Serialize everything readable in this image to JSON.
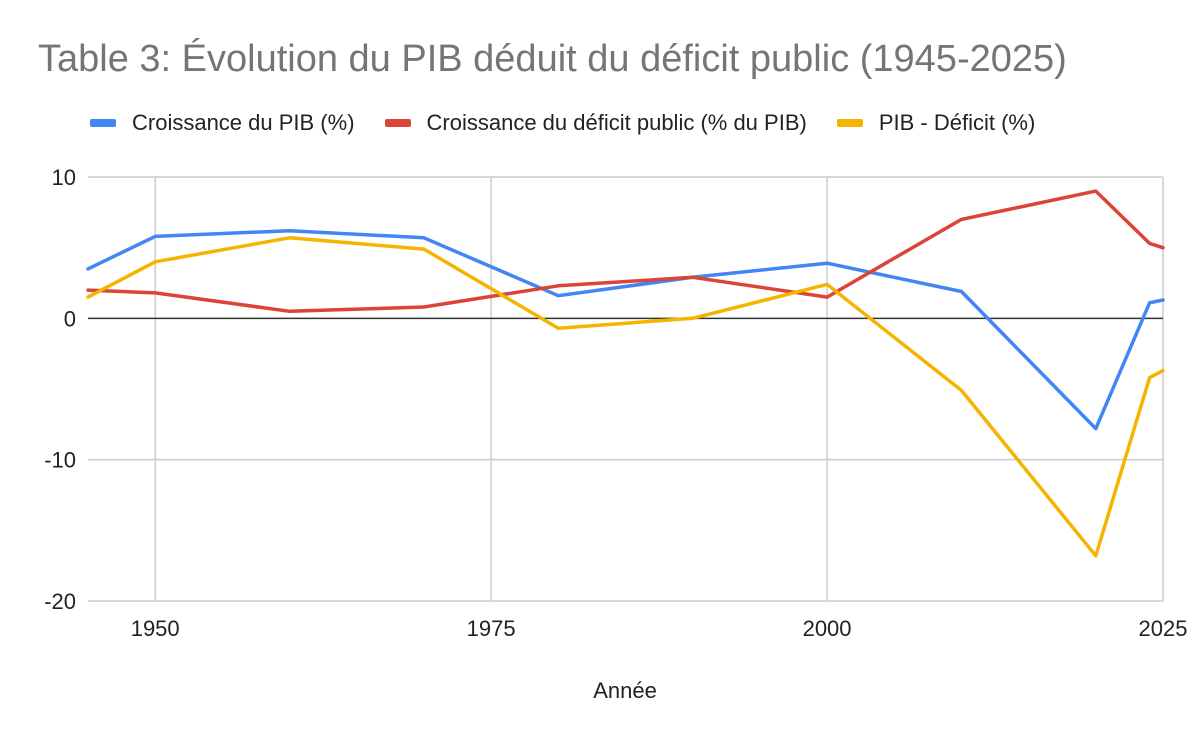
{
  "chart_data": {
    "type": "line",
    "title": "Table 3: Évolution du PIB déduit du déficit public (1945-2025)",
    "xlabel": "Année",
    "ylabel": "",
    "xlim": [
      1945,
      2025
    ],
    "ylim": [
      -20,
      10
    ],
    "x_ticks": [
      1950,
      1975,
      2000,
      2025
    ],
    "y_ticks": [
      10,
      0,
      -10,
      -20
    ],
    "grid": true,
    "legend_position": "top",
    "x": [
      1945,
      1950,
      1960,
      1970,
      1980,
      1990,
      2000,
      2010,
      2020,
      2024,
      2025
    ],
    "series": [
      {
        "name": "Croissance du PIB (%)",
        "color": "#4285F4",
        "values": [
          3.5,
          5.8,
          6.2,
          5.7,
          1.6,
          2.9,
          3.9,
          1.9,
          -7.8,
          1.1,
          1.3
        ]
      },
      {
        "name": "Croissance du déficit public (% du PIB)",
        "color": "#DB4437",
        "values": [
          2.0,
          1.8,
          0.5,
          0.8,
          2.3,
          2.9,
          1.5,
          7.0,
          9.0,
          5.3,
          5.0
        ]
      },
      {
        "name": "PIB - Déficit (%)",
        "color": "#F4B400",
        "values": [
          1.5,
          4.0,
          5.7,
          4.9,
          -0.7,
          0.0,
          2.4,
          -5.1,
          -16.8,
          -4.2,
          -3.7
        ]
      }
    ]
  }
}
